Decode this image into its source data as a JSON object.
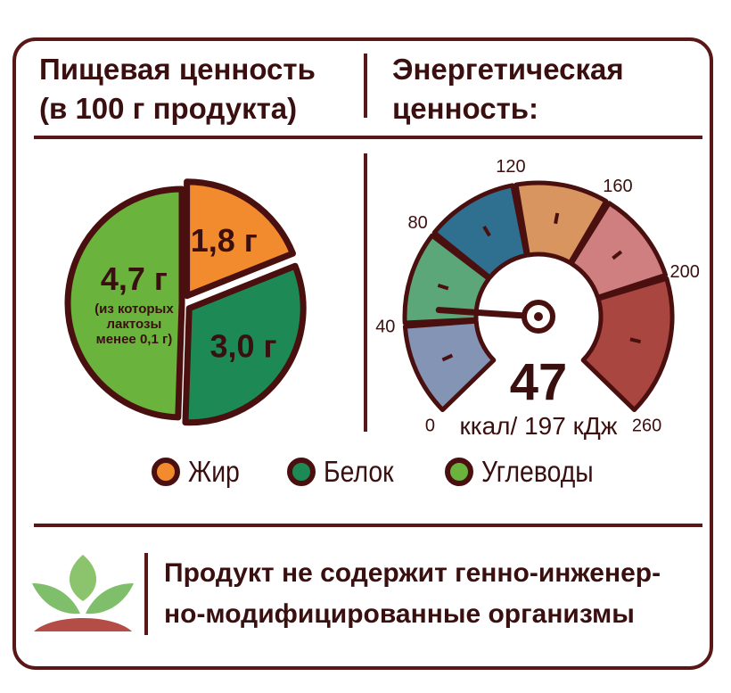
{
  "nutrition": {
    "title_line1": "Пищевая ценность",
    "title_line2": "(в 100 г продукта)"
  },
  "energy": {
    "title_line1": "Энергетическая",
    "title_line2": "ценность:"
  },
  "chart_data": [
    {
      "type": "pie",
      "categories": [
        "Жир",
        "Белок",
        "Углеводы"
      ],
      "values": [
        1.8,
        3.0,
        4.7
      ],
      "units": "г",
      "data_labels": [
        "1,8 г",
        "3,0 г",
        "4,7 г"
      ],
      "annotations": [
        "(из которых",
        "лактозы",
        "менее 0,1 г)"
      ],
      "colors": [
        "#f28a2e",
        "#1d8a55",
        "#6ab33c"
      ],
      "legend_position": "bottom"
    },
    {
      "type": "gauge",
      "min": 0,
      "max": 260,
      "value": 47,
      "tick_labels": [
        "0",
        "40",
        "80",
        "120",
        "160",
        "200",
        "260"
      ],
      "tick_values": [
        0,
        40,
        80,
        120,
        160,
        200,
        260
      ],
      "segment_colors": [
        "#8394b5",
        "#5ca77a",
        "#2f6f8f",
        "#d99560",
        "#cf7f7f",
        "#a8463f"
      ],
      "value_label": "47",
      "unit_label": "ккал/ 197 кДж"
    }
  ],
  "legend": [
    {
      "label": "Жир",
      "color": "#f28a2e"
    },
    {
      "label": "Белок",
      "color": "#1d8a55"
    },
    {
      "label": "Углеводы",
      "color": "#6ab33c"
    }
  ],
  "footer": {
    "icon": "leaf-icon",
    "line1": "Продукт не содержит генно-инженер-",
    "line2": "но-модифицированные организмы"
  }
}
